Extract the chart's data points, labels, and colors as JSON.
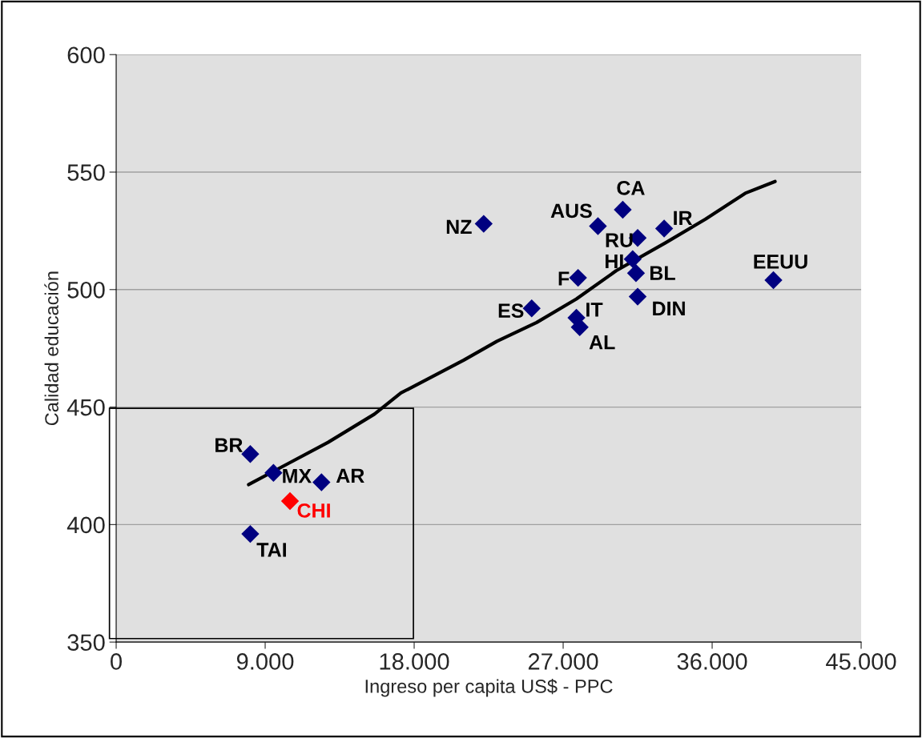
{
  "chart_data": {
    "type": "scatter",
    "xlabel": "Ingreso per capita US$ - PPC",
    "ylabel": "Calidad educación",
    "xlim": [
      0,
      45000
    ],
    "ylim": [
      350,
      600
    ],
    "xticks": [
      0,
      {
        "value": 9000,
        "label": "9.000"
      },
      {
        "value": 18000,
        "label": "18.000"
      },
      {
        "value": 27000,
        "label": "27.000"
      },
      {
        "value": 36000,
        "label": "36.000"
      },
      {
        "value": 45000,
        "label": "45.000"
      }
    ],
    "yticks": [
      350,
      400,
      450,
      500,
      550,
      600
    ],
    "grid": "y",
    "legend": false,
    "marker": "diamond",
    "series": [
      {
        "name": "CA",
        "color": "#000080",
        "x": [
          30600
        ],
        "values": [
          534
        ]
      },
      {
        "name": "AUS",
        "color": "#000080",
        "x": [
          29100
        ],
        "values": [
          527
        ]
      },
      {
        "name": "IR",
        "color": "#000080",
        "x": [
          33100
        ],
        "values": [
          526
        ]
      },
      {
        "name": "RU",
        "color": "#000080",
        "x": [
          31500
        ],
        "values": [
          522
        ]
      },
      {
        "name": "HI",
        "color": "#000080",
        "x": [
          31200
        ],
        "values": [
          513
        ]
      },
      {
        "name": "BL",
        "color": "#000080",
        "x": [
          31400
        ],
        "values": [
          507
        ]
      },
      {
        "name": "F",
        "color": "#000080",
        "x": [
          27900
        ],
        "values": [
          505
        ]
      },
      {
        "name": "EEUU",
        "color": "#000080",
        "x": [
          39700
        ],
        "values": [
          504
        ]
      },
      {
        "name": "ES",
        "color": "#000080",
        "x": [
          25100
        ],
        "values": [
          492
        ]
      },
      {
        "name": "DIN",
        "color": "#000080",
        "x": [
          31500
        ],
        "values": [
          497
        ]
      },
      {
        "name": "IT",
        "color": "#000080",
        "x": [
          27800
        ],
        "values": [
          488
        ]
      },
      {
        "name": "AL",
        "color": "#000080",
        "x": [
          28000
        ],
        "values": [
          484
        ]
      },
      {
        "name": "NZ",
        "color": "#000080",
        "x": [
          22200
        ],
        "values": [
          528
        ]
      },
      {
        "name": "BR",
        "color": "#000080",
        "x": [
          8100
        ],
        "values": [
          430
        ]
      },
      {
        "name": "MX",
        "color": "#000080",
        "x": [
          9500
        ],
        "values": [
          422
        ]
      },
      {
        "name": "AR",
        "color": "#000080",
        "x": [
          12400
        ],
        "values": [
          418
        ]
      },
      {
        "name": "CHI",
        "color": "#ff0000",
        "x": [
          10500
        ],
        "values": [
          410
        ]
      },
      {
        "name": "TAI",
        "color": "#000080",
        "x": [
          8100
        ],
        "values": [
          396
        ]
      },
      {
        "type": "line",
        "marker": "none",
        "color": "#000000",
        "x": [
          8000,
          10400,
          12800,
          15600,
          17200,
          21000,
          23000,
          25400,
          27800,
          30200,
          33200,
          35600,
          38000,
          39800
        ],
        "values": [
          417,
          426,
          435,
          447,
          456,
          470,
          478,
          486,
          496,
          508,
          520,
          530,
          541,
          546
        ]
      }
    ]
  }
}
